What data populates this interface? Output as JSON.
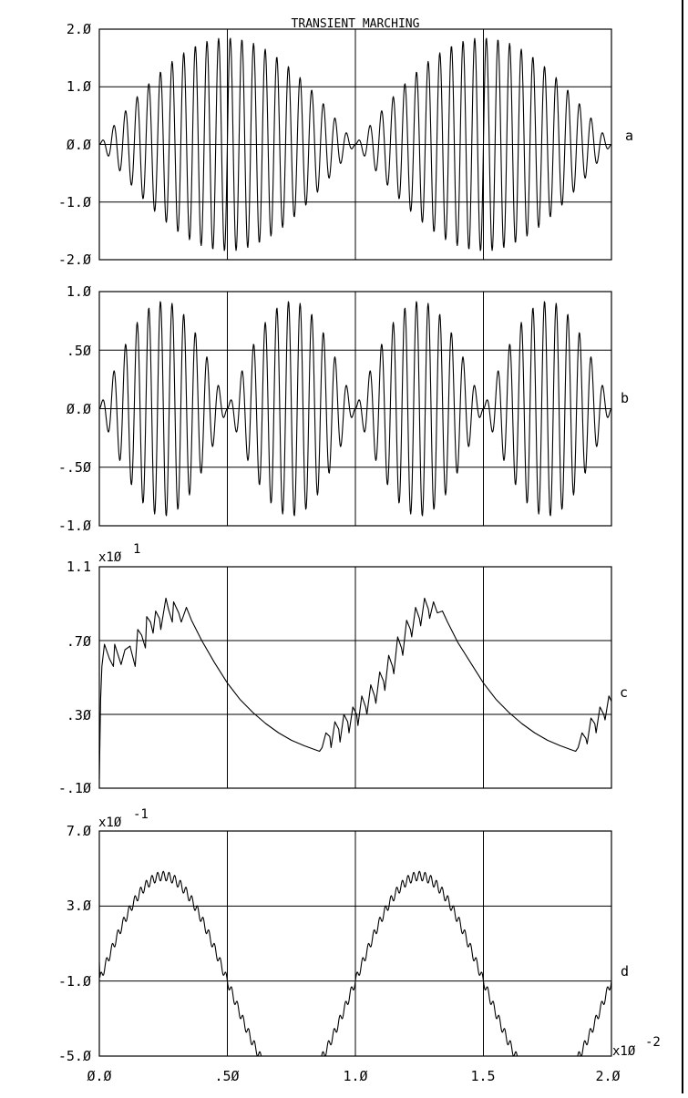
{
  "chart_data": [
    {
      "type": "line",
      "title": "TRANSIENT MARCHING",
      "panel_label": "a",
      "ylim": [
        -2.0,
        2.0
      ],
      "y_ticks": [
        "2.Ø",
        "1.Ø",
        "Ø.Ø",
        "-1.Ø",
        "-2.Ø"
      ],
      "xlim": [
        0.0,
        2.0
      ],
      "grid": true,
      "series": [
        {
          "kind": "beat",
          "carrier_cycles": 44,
          "envelope_cycles": 2,
          "amplitude": 1.85,
          "x_step": 0.002
        }
      ]
    },
    {
      "type": "line",
      "panel_label": "b",
      "ylim": [
        -1.0,
        1.0
      ],
      "y_ticks": [
        "1.Ø",
        ".5Ø",
        "Ø.Ø",
        "-.5Ø",
        "-1.Ø"
      ],
      "xlim": [
        0.0,
        2.0
      ],
      "grid": true,
      "series": [
        {
          "kind": "beat",
          "carrier_cycles": 44,
          "envelope_cycles": 4,
          "amplitude": 0.92,
          "x_step": 0.002
        }
      ]
    },
    {
      "type": "line",
      "panel_label": "c",
      "multiplier": {
        "base": "x1Ø",
        "exponent": "1"
      },
      "ylim": [
        -0.1,
        1.1
      ],
      "y_ticks": [
        "1.1",
        ".7Ø",
        ".3Ø",
        "-.1Ø"
      ],
      "xlim": [
        0.0,
        2.0
      ],
      "grid": true,
      "series": [
        {
          "kind": "points",
          "x": [
            0.0,
            0.005,
            0.01,
            0.02,
            0.04,
            0.055,
            0.06,
            0.085,
            0.1,
            0.12,
            0.14,
            0.15,
            0.165,
            0.18,
            0.185,
            0.2,
            0.21,
            0.22,
            0.235,
            0.24,
            0.26,
            0.27,
            0.285,
            0.29,
            0.31,
            0.32,
            0.34,
            0.36,
            0.4,
            0.45,
            0.5,
            0.55,
            0.6,
            0.65,
            0.7,
            0.75,
            0.8,
            0.84,
            0.86,
            0.87,
            0.885,
            0.9,
            0.905,
            0.92,
            0.935,
            0.94,
            0.955,
            0.97,
            0.975,
            0.99,
            1.005,
            1.01,
            1.025,
            1.04,
            1.045,
            1.06,
            1.075,
            1.08,
            1.095,
            1.11,
            1.115,
            1.13,
            1.145,
            1.15,
            1.165,
            1.18,
            1.185,
            1.2,
            1.215,
            1.22,
            1.235,
            1.25,
            1.255,
            1.27,
            1.285,
            1.29,
            1.305,
            1.32,
            1.34,
            1.36,
            1.4,
            1.45,
            1.5,
            1.55,
            1.6,
            1.65,
            1.7,
            1.75,
            1.8,
            1.84,
            1.86,
            1.87,
            1.885,
            1.9,
            1.905,
            1.92,
            1.935,
            1.94,
            1.955,
            1.97,
            1.975,
            1.99,
            2.0
          ],
          "y": [
            -0.05,
            0.38,
            0.56,
            0.68,
            0.6,
            0.56,
            0.68,
            0.57,
            0.65,
            0.67,
            0.56,
            0.76,
            0.73,
            0.66,
            0.83,
            0.8,
            0.74,
            0.86,
            0.82,
            0.76,
            0.93,
            0.87,
            0.8,
            0.91,
            0.85,
            0.8,
            0.88,
            0.81,
            0.7,
            0.58,
            0.47,
            0.38,
            0.31,
            0.25,
            0.2,
            0.16,
            0.13,
            0.11,
            0.1,
            0.12,
            0.2,
            0.18,
            0.12,
            0.26,
            0.22,
            0.15,
            0.3,
            0.26,
            0.2,
            0.34,
            0.3,
            0.24,
            0.4,
            0.34,
            0.3,
            0.46,
            0.4,
            0.36,
            0.53,
            0.48,
            0.43,
            0.62,
            0.56,
            0.52,
            0.72,
            0.66,
            0.62,
            0.81,
            0.76,
            0.72,
            0.88,
            0.82,
            0.78,
            0.93,
            0.87,
            0.82,
            0.91,
            0.85,
            0.86,
            0.8,
            0.69,
            0.58,
            0.47,
            0.38,
            0.31,
            0.25,
            0.2,
            0.16,
            0.13,
            0.11,
            0.1,
            0.12,
            0.2,
            0.17,
            0.14,
            0.28,
            0.25,
            0.2,
            0.34,
            0.3,
            0.27,
            0.4,
            0.37
          ]
        }
      ]
    },
    {
      "type": "line",
      "panel_label": "d",
      "multiplier": {
        "base": "x1Ø",
        "exponent": "-1"
      },
      "ylim": [
        -5.0,
        7.0
      ],
      "y_ticks": [
        "7.Ø",
        "3.Ø",
        "-1.Ø",
        "-5.Ø"
      ],
      "xlim": [
        0.0,
        2.0
      ],
      "x_ticks": [
        "Ø.Ø",
        ".5Ø",
        "1.Ø",
        "1.5",
        "2.Ø"
      ],
      "x_multiplier": {
        "base": "x1Ø",
        "exponent": "-2"
      },
      "grid": true,
      "series": [
        {
          "kind": "sine_ripple",
          "offset": -1.0,
          "amplitude": 5.6,
          "period": 1.0,
          "ripple_amplitude": 0.25,
          "ripple_cycles": 90,
          "start_value": 0.0,
          "x_step": 0.002
        }
      ]
    }
  ]
}
